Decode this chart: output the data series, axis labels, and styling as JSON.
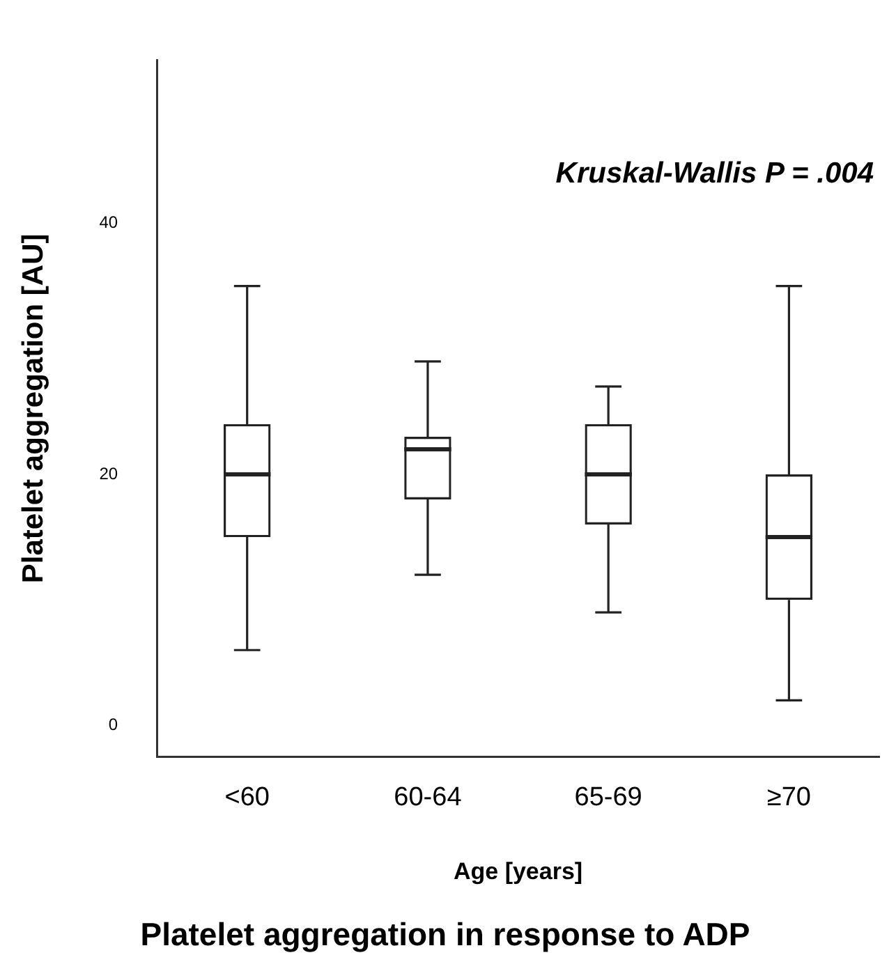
{
  "chart_data": {
    "type": "box",
    "title": "Platelet aggregation in response to ADP",
    "xlabel": "Age [years]",
    "ylabel": "Platelet aggregation [AU]",
    "categories": [
      "<60",
      "60-64",
      "65-69",
      "≥70"
    ],
    "boxes": [
      {
        "low": 6,
        "q1": 15,
        "median": 20,
        "q3": 24,
        "high": 35
      },
      {
        "low": 12,
        "q1": 18,
        "median": 22,
        "q3": 23,
        "high": 29
      },
      {
        "low": 9,
        "q1": 16,
        "median": 20,
        "q3": 24,
        "high": 27
      },
      {
        "low": 2,
        "q1": 10,
        "median": 15,
        "q3": 20,
        "high": 35
      }
    ],
    "color": "#222222",
    "ylim": [
      -2.5,
      53
    ],
    "yticks": [
      0,
      20,
      40
    ],
    "annotations": [
      "Kruskal-Wallis P = .004"
    ],
    "grid": false,
    "legend": false
  }
}
